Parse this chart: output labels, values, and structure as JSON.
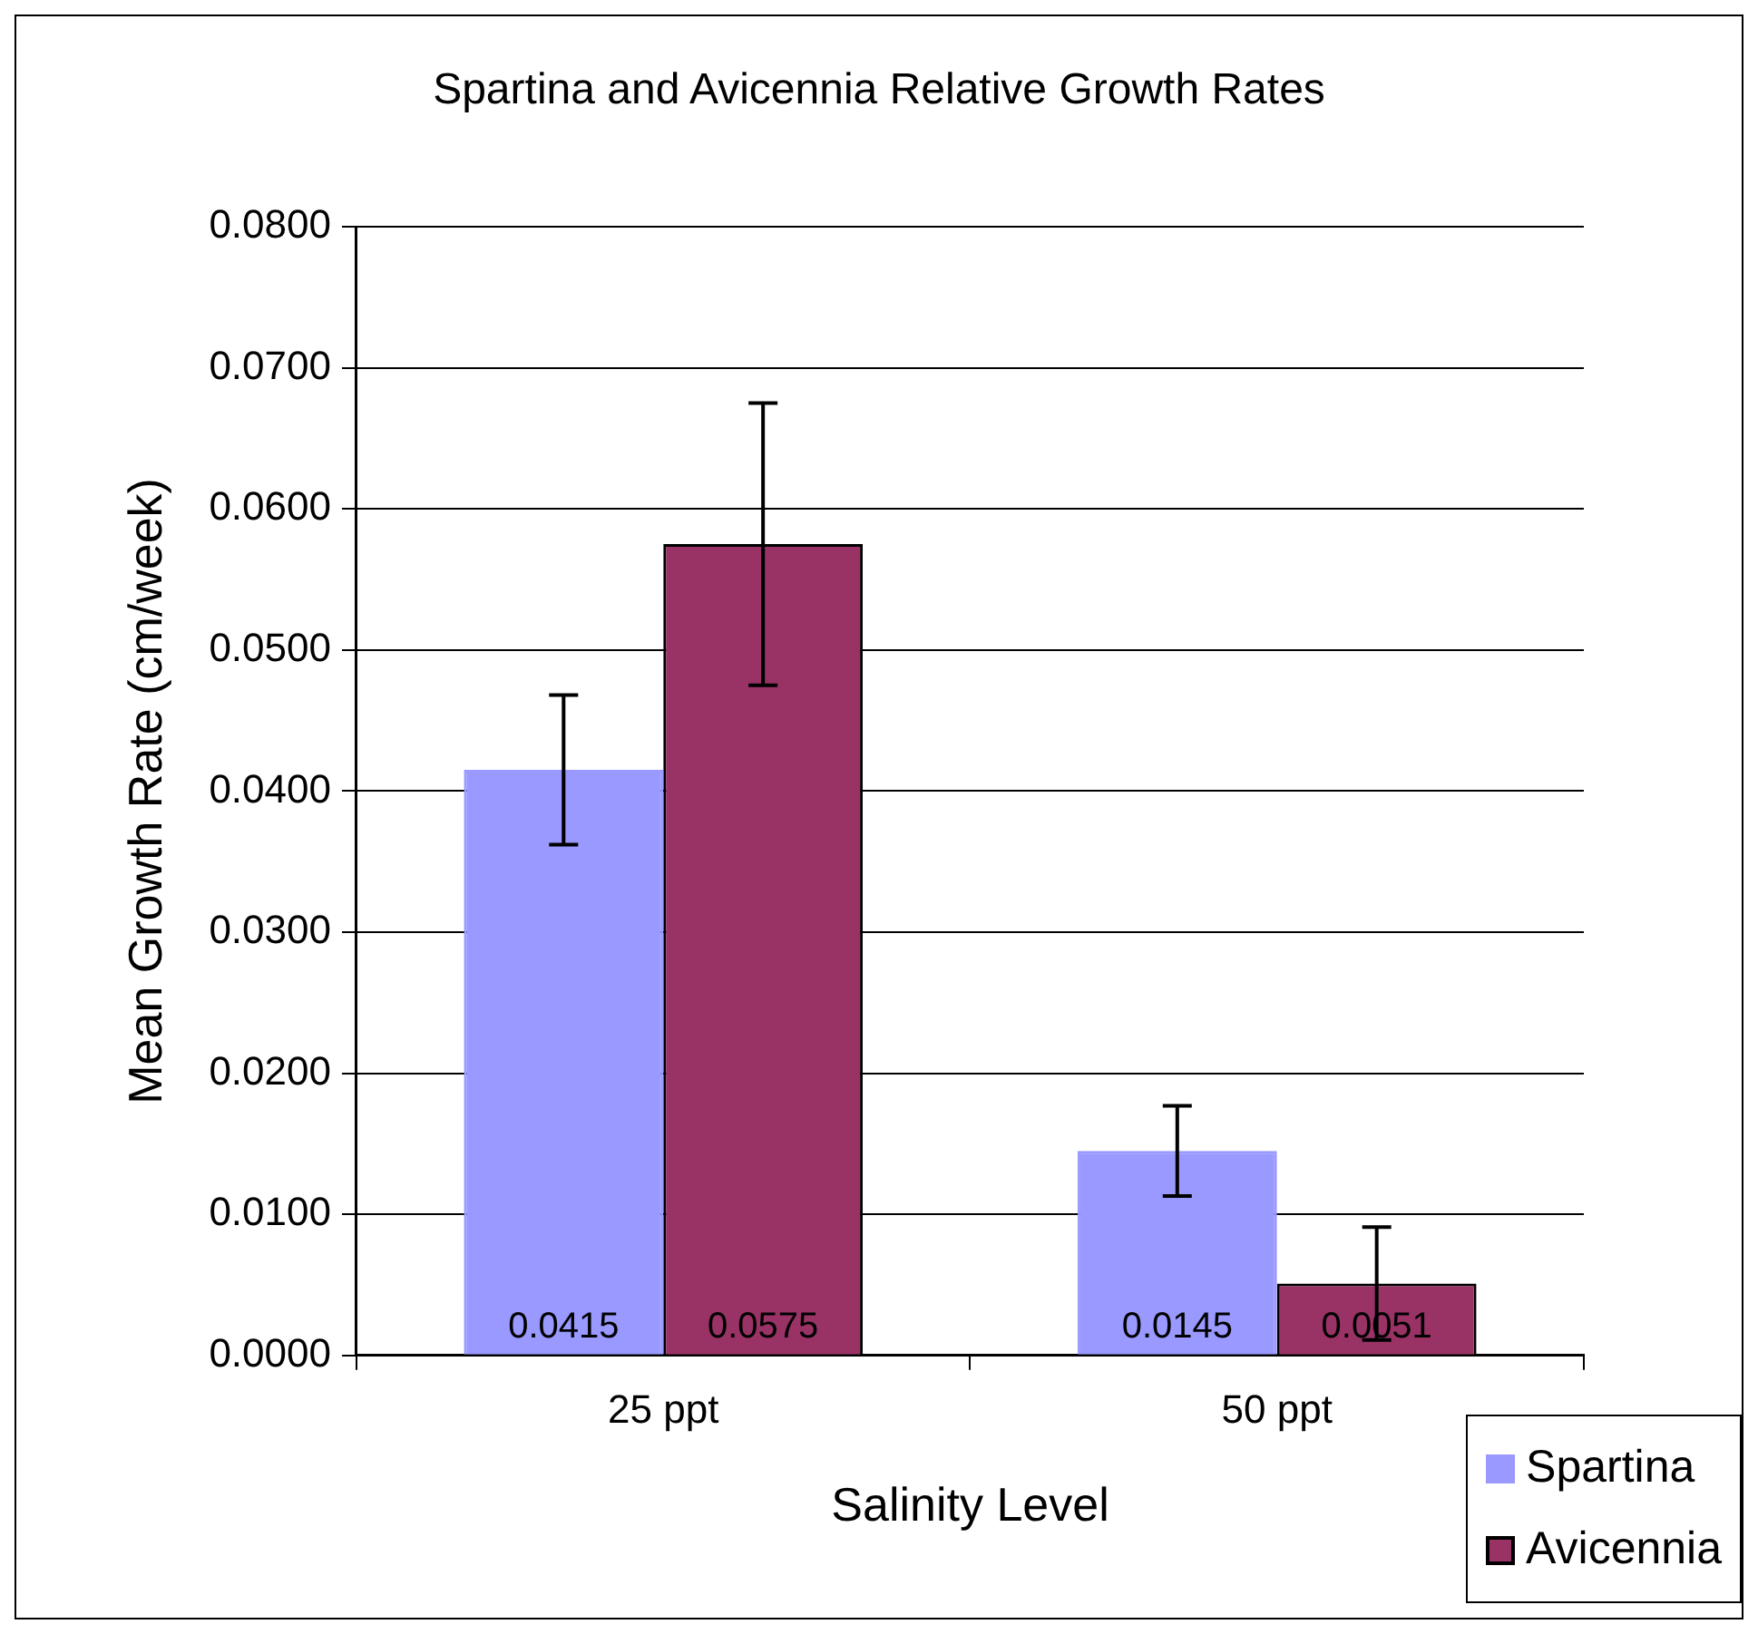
{
  "chart_data": {
    "type": "bar",
    "title": "Spartina and Avicennia Relative Growth Rates",
    "xlabel": "Salinity Level",
    "ylabel": "Mean Growth Rate (cm/week)",
    "categories": [
      "25 ppt",
      "50 ppt"
    ],
    "series": [
      {
        "name": "Spartina",
        "color": "#9999ff",
        "values": [
          0.0415,
          0.0145
        ],
        "errors": [
          0.0053,
          0.0032
        ]
      },
      {
        "name": "Avicennia",
        "color": "#993366",
        "values": [
          0.0575,
          0.0051
        ],
        "errors": [
          0.01,
          0.004
        ]
      }
    ],
    "ylim": [
      0,
      0.08
    ],
    "yticks": [
      {
        "value": 0,
        "label": "0.0000"
      },
      {
        "value": 0.01,
        "label": "0.0100"
      },
      {
        "value": 0.02,
        "label": "0.0200"
      },
      {
        "value": 0.03,
        "label": "0.0300"
      },
      {
        "value": 0.04,
        "label": "0.0400"
      },
      {
        "value": 0.05,
        "label": "0.0500"
      },
      {
        "value": 0.06,
        "label": "0.0600"
      },
      {
        "value": 0.07,
        "label": "0.0700"
      },
      {
        "value": 0.08,
        "label": "0.0800"
      }
    ],
    "grid": "y",
    "legend": "bottom right",
    "data_labels": true
  }
}
